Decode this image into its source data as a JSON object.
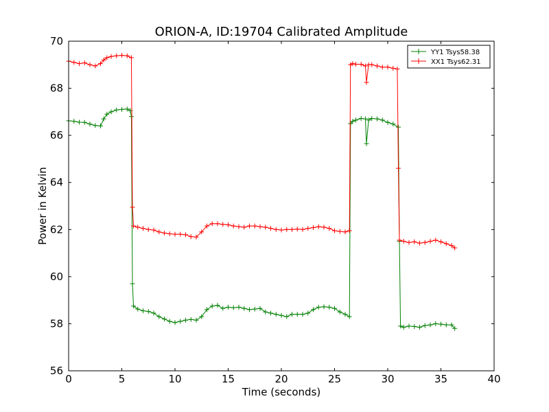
{
  "chart_data": {
    "type": "line",
    "title": "ORION-A, ID:19704 Calibrated Amplitude",
    "xlabel": "Time (seconds)",
    "ylabel": "Power in Kelvin",
    "xlim": [
      0,
      40
    ],
    "ylim": [
      56,
      70
    ],
    "xticks": [
      0,
      5,
      10,
      15,
      20,
      25,
      30,
      35,
      40
    ],
    "yticks": [
      56,
      58,
      60,
      62,
      64,
      66,
      68,
      70
    ],
    "grid": false,
    "legend_position": "top-right",
    "series": [
      {
        "name": "YY1 Tsys58.38",
        "color": "#008000",
        "marker": "+",
        "points": [
          [
            0.0,
            66.62
          ],
          [
            0.5,
            66.6
          ],
          [
            1.0,
            66.56
          ],
          [
            1.5,
            66.55
          ],
          [
            2.0,
            66.48
          ],
          [
            2.5,
            66.42
          ],
          [
            3.0,
            66.4
          ],
          [
            3.3,
            66.7
          ],
          [
            3.6,
            66.9
          ],
          [
            4.0,
            67.0
          ],
          [
            4.5,
            67.08
          ],
          [
            5.0,
            67.1
          ],
          [
            5.5,
            67.12
          ],
          [
            5.8,
            67.05
          ],
          [
            5.9,
            66.8
          ],
          [
            6.0,
            59.7
          ],
          [
            6.1,
            58.75
          ],
          [
            6.5,
            58.62
          ],
          [
            7.0,
            58.55
          ],
          [
            7.5,
            58.52
          ],
          [
            8.0,
            58.45
          ],
          [
            8.5,
            58.3
          ],
          [
            9.0,
            58.2
          ],
          [
            9.5,
            58.1
          ],
          [
            10.0,
            58.05
          ],
          [
            10.5,
            58.1
          ],
          [
            11.0,
            58.15
          ],
          [
            11.5,
            58.18
          ],
          [
            12.0,
            58.15
          ],
          [
            12.5,
            58.3
          ],
          [
            13.0,
            58.6
          ],
          [
            13.5,
            58.75
          ],
          [
            14.0,
            58.78
          ],
          [
            14.5,
            58.65
          ],
          [
            15.0,
            58.7
          ],
          [
            15.5,
            58.68
          ],
          [
            16.0,
            58.7
          ],
          [
            16.5,
            58.65
          ],
          [
            17.0,
            58.6
          ],
          [
            17.5,
            58.62
          ],
          [
            18.0,
            58.65
          ],
          [
            18.5,
            58.5
          ],
          [
            19.0,
            58.45
          ],
          [
            19.5,
            58.4
          ],
          [
            20.0,
            58.35
          ],
          [
            20.5,
            58.3
          ],
          [
            21.0,
            58.4
          ],
          [
            21.5,
            58.4
          ],
          [
            22.0,
            58.4
          ],
          [
            22.5,
            58.45
          ],
          [
            23.0,
            58.6
          ],
          [
            23.5,
            58.7
          ],
          [
            24.0,
            58.72
          ],
          [
            24.5,
            58.7
          ],
          [
            25.0,
            58.65
          ],
          [
            25.5,
            58.5
          ],
          [
            26.0,
            58.4
          ],
          [
            26.4,
            58.3
          ],
          [
            26.5,
            66.5
          ],
          [
            26.7,
            66.6
          ],
          [
            27.0,
            66.65
          ],
          [
            27.5,
            66.72
          ],
          [
            27.9,
            66.7
          ],
          [
            28.0,
            65.65
          ],
          [
            28.2,
            66.65
          ],
          [
            28.5,
            66.72
          ],
          [
            29.0,
            66.7
          ],
          [
            29.5,
            66.65
          ],
          [
            30.0,
            66.55
          ],
          [
            30.5,
            66.48
          ],
          [
            31.0,
            66.35
          ],
          [
            31.1,
            61.5
          ],
          [
            31.2,
            57.9
          ],
          [
            31.5,
            57.85
          ],
          [
            32.0,
            57.9
          ],
          [
            32.5,
            57.88
          ],
          [
            33.0,
            57.85
          ],
          [
            33.5,
            57.92
          ],
          [
            34.0,
            57.95
          ],
          [
            34.5,
            58.0
          ],
          [
            35.0,
            57.98
          ],
          [
            35.5,
            57.95
          ],
          [
            36.0,
            57.95
          ],
          [
            36.3,
            57.8
          ]
        ]
      },
      {
        "name": "XX1 Tsys62.31",
        "color": "#ff0000",
        "marker": "+",
        "points": [
          [
            0.0,
            69.15
          ],
          [
            0.5,
            69.1
          ],
          [
            1.0,
            69.05
          ],
          [
            1.5,
            69.08
          ],
          [
            2.0,
            69.0
          ],
          [
            2.5,
            68.95
          ],
          [
            3.0,
            69.05
          ],
          [
            3.3,
            69.2
          ],
          [
            3.6,
            69.3
          ],
          [
            4.0,
            69.35
          ],
          [
            4.5,
            69.38
          ],
          [
            5.0,
            69.4
          ],
          [
            5.5,
            69.38
          ],
          [
            5.9,
            69.3
          ],
          [
            6.0,
            62.95
          ],
          [
            6.1,
            62.15
          ],
          [
            6.5,
            62.1
          ],
          [
            7.0,
            62.05
          ],
          [
            7.5,
            62.0
          ],
          [
            8.0,
            61.98
          ],
          [
            8.5,
            61.9
          ],
          [
            9.0,
            61.85
          ],
          [
            9.5,
            61.82
          ],
          [
            10.0,
            61.8
          ],
          [
            10.5,
            61.8
          ],
          [
            11.0,
            61.78
          ],
          [
            11.5,
            61.7
          ],
          [
            12.0,
            61.68
          ],
          [
            12.5,
            61.9
          ],
          [
            13.0,
            62.15
          ],
          [
            13.5,
            62.25
          ],
          [
            14.0,
            62.25
          ],
          [
            14.5,
            62.22
          ],
          [
            15.0,
            62.2
          ],
          [
            15.5,
            62.15
          ],
          [
            16.0,
            62.12
          ],
          [
            16.5,
            62.1
          ],
          [
            17.0,
            62.15
          ],
          [
            17.5,
            62.15
          ],
          [
            18.0,
            62.12
          ],
          [
            18.5,
            62.1
          ],
          [
            19.0,
            62.05
          ],
          [
            19.5,
            62.0
          ],
          [
            20.0,
            61.98
          ],
          [
            20.5,
            62.0
          ],
          [
            21.0,
            62.0
          ],
          [
            21.5,
            62.02
          ],
          [
            22.0,
            62.0
          ],
          [
            22.5,
            62.05
          ],
          [
            23.0,
            62.08
          ],
          [
            23.5,
            62.12
          ],
          [
            24.0,
            62.1
          ],
          [
            24.5,
            62.05
          ],
          [
            25.0,
            61.95
          ],
          [
            25.5,
            61.92
          ],
          [
            26.0,
            61.9
          ],
          [
            26.4,
            61.95
          ],
          [
            26.5,
            69.0
          ],
          [
            26.7,
            69.05
          ],
          [
            27.0,
            69.02
          ],
          [
            27.5,
            69.02
          ],
          [
            27.9,
            68.95
          ],
          [
            28.0,
            68.25
          ],
          [
            28.2,
            69.0
          ],
          [
            28.5,
            69.0
          ],
          [
            29.0,
            68.95
          ],
          [
            29.5,
            68.9
          ],
          [
            30.0,
            68.9
          ],
          [
            30.5,
            68.85
          ],
          [
            30.9,
            68.82
          ],
          [
            31.0,
            64.6
          ],
          [
            31.1,
            61.55
          ],
          [
            31.5,
            61.5
          ],
          [
            32.0,
            61.45
          ],
          [
            32.5,
            61.48
          ],
          [
            33.0,
            61.42
          ],
          [
            33.5,
            61.45
          ],
          [
            34.0,
            61.5
          ],
          [
            34.5,
            61.55
          ],
          [
            35.0,
            61.48
          ],
          [
            35.5,
            61.4
          ],
          [
            36.0,
            61.32
          ],
          [
            36.3,
            61.22
          ]
        ]
      }
    ]
  }
}
